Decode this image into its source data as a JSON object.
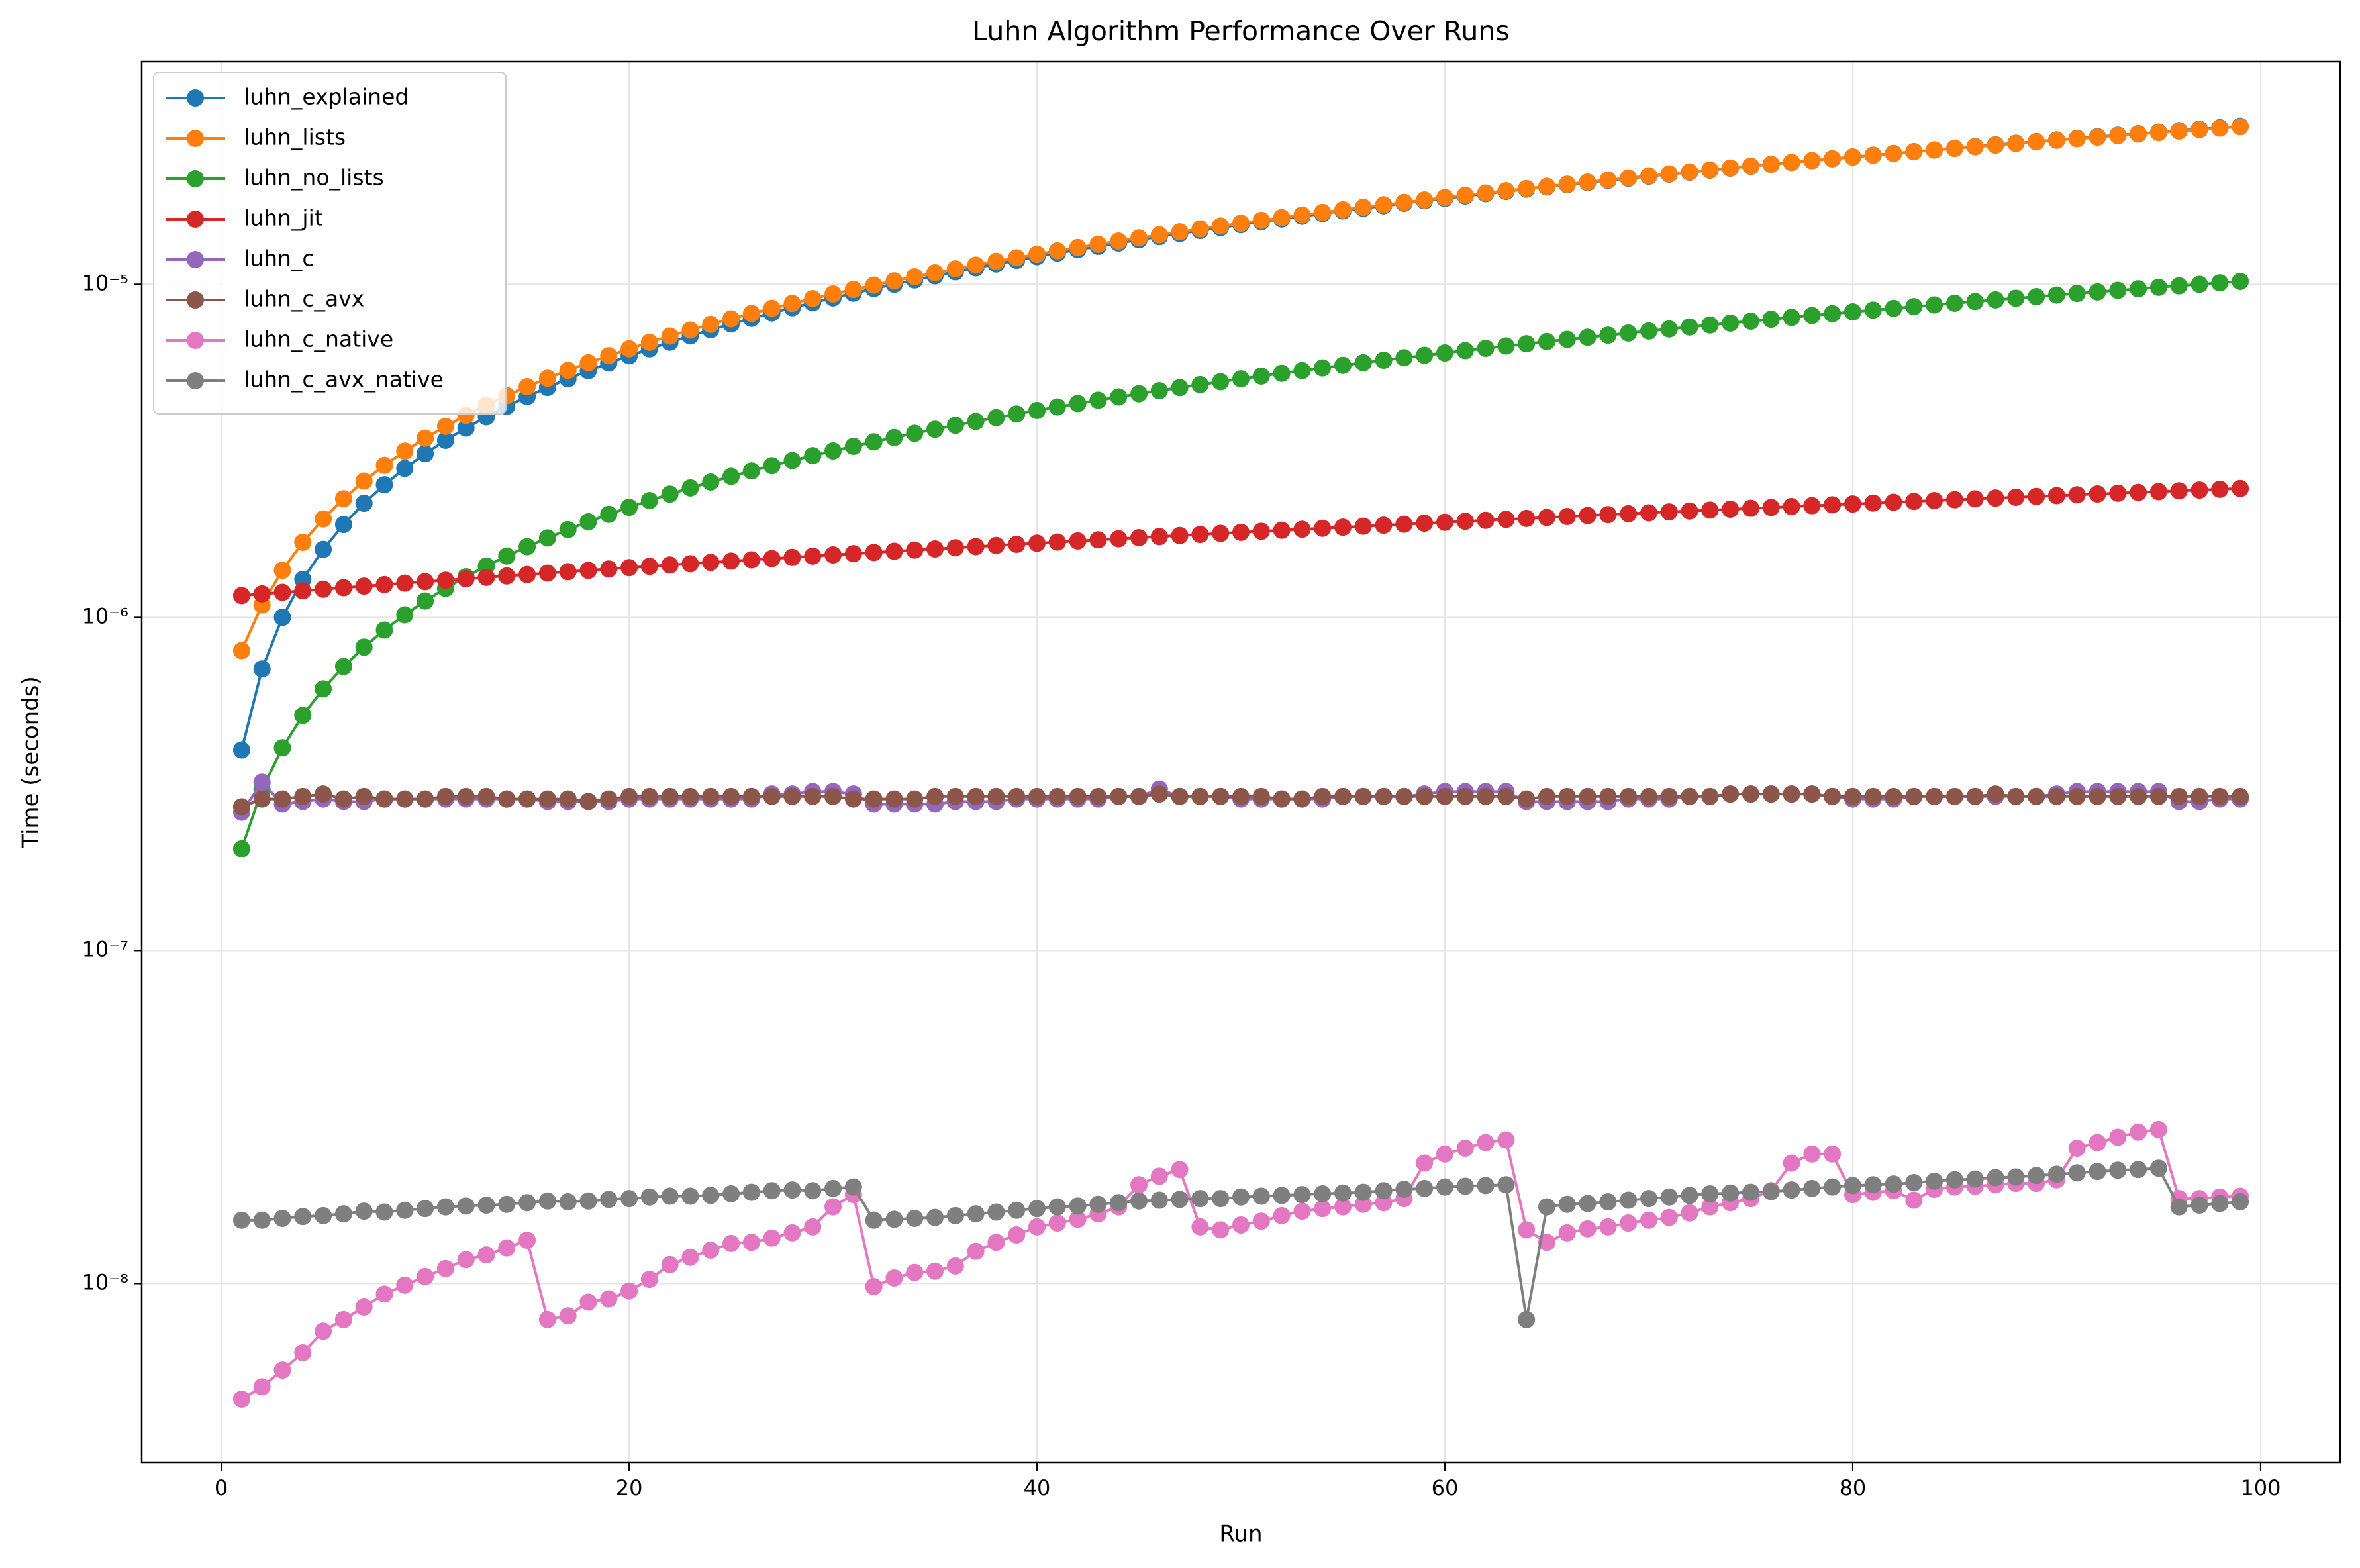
{
  "chart_data": {
    "type": "line",
    "title": "Luhn Algorithm Performance Over Runs",
    "x_label": "Run",
    "y_label": "Time (seconds)",
    "xlim": [
      -3.9,
      103.9
    ],
    "xticks": [
      0,
      20,
      40,
      60,
      80,
      100
    ],
    "ylim": [
      2.9e-09,
      4.66e-05
    ],
    "y_scale": "log",
    "yticks": [
      {
        "value": 1e-08,
        "label": "10⁻⁸"
      },
      {
        "value": 1e-07,
        "label": "10⁻⁷"
      },
      {
        "value": 1e-06,
        "label": "10⁻⁶"
      },
      {
        "value": 1e-05,
        "label": "10⁻⁵"
      }
    ],
    "grid": true,
    "legend": "upper left",
    "x": [
      1,
      2,
      3,
      4,
      5,
      6,
      7,
      8,
      9,
      10,
      11,
      12,
      13,
      14,
      15,
      16,
      17,
      18,
      19,
      20,
      21,
      22,
      23,
      24,
      25,
      26,
      27,
      28,
      29,
      30,
      31,
      32,
      33,
      34,
      35,
      36,
      37,
      38,
      39,
      40,
      41,
      42,
      43,
      44,
      45,
      46,
      47,
      48,
      49,
      50,
      51,
      52,
      53,
      54,
      55,
      56,
      57,
      58,
      59,
      60,
      61,
      62,
      63,
      64,
      65,
      66,
      67,
      68,
      69,
      70,
      71,
      72,
      73,
      74,
      75,
      76,
      77,
      78,
      79,
      80,
      81,
      82,
      83,
      84,
      85,
      86,
      87,
      88,
      89,
      90,
      91,
      92,
      93,
      94,
      95,
      96,
      97,
      98,
      99
    ],
    "series": [
      {
        "name": "luhn_explained",
        "color": "#1f77b4",
        "values": [
          4e-07,
          7e-07,
          1e-06,
          1.3e-06,
          1.6e-06,
          1.9e-06,
          2.2e-06,
          2.5e-06,
          2.8e-06,
          3.1e-06,
          3.4e-06,
          3.7e-06,
          4e-06,
          4.3e-06,
          4.6e-06,
          4.9e-06,
          5.2e-06,
          5.5e-06,
          5.8e-06,
          6.1e-06,
          6.4e-06,
          6.7e-06,
          7e-06,
          7.3e-06,
          7.6e-06,
          7.9e-06,
          8.2e-06,
          8.5e-06,
          8.8e-06,
          9.1e-06,
          9.4e-06,
          9.7e-06,
          1e-05,
          1.03e-05,
          1.06e-05,
          1.09e-05,
          1.12e-05,
          1.15e-05,
          1.18e-05,
          1.21e-05,
          1.24e-05,
          1.27e-05,
          1.3e-05,
          1.33e-05,
          1.36e-05,
          1.39e-05,
          1.42e-05,
          1.45e-05,
          1.48e-05,
          1.51e-05,
          1.54e-05,
          1.57e-05,
          1.6e-05,
          1.63e-05,
          1.66e-05,
          1.69e-05,
          1.72e-05,
          1.75e-05,
          1.78e-05,
          1.81e-05,
          1.84e-05,
          1.87e-05,
          1.9e-05,
          1.93e-05,
          1.96e-05,
          1.99e-05,
          2.02e-05,
          2.05e-05,
          2.08e-05,
          2.11e-05,
          2.14e-05,
          2.17e-05,
          2.2e-05,
          2.23e-05,
          2.26e-05,
          2.29e-05,
          2.32e-05,
          2.35e-05,
          2.38e-05,
          2.41e-05,
          2.44e-05,
          2.47e-05,
          2.5e-05,
          2.53e-05,
          2.56e-05,
          2.59e-05,
          2.62e-05,
          2.65e-05,
          2.68e-05,
          2.71e-05,
          2.74e-05,
          2.77e-05,
          2.8e-05,
          2.83e-05,
          2.86e-05,
          2.89e-05,
          2.92e-05,
          2.95e-05,
          2.98e-05
        ]
      },
      {
        "name": "luhn_lists",
        "color": "#ff7f0e",
        "values": [
          7.95e-07,
          1.09e-06,
          1.385e-06,
          1.68e-06,
          1.975e-06,
          2.27e-06,
          2.565e-06,
          2.86e-06,
          3.155e-06,
          3.45e-06,
          3.745e-06,
          4.04e-06,
          4.335e-06,
          4.63e-06,
          4.925e-06,
          5.22e-06,
          5.515e-06,
          5.81e-06,
          6.105e-06,
          6.4e-06,
          6.695e-06,
          6.99e-06,
          7.285e-06,
          7.58e-06,
          7.875e-06,
          8.17e-06,
          8.465e-06,
          8.76e-06,
          9.055e-06,
          9.35e-06,
          9.645e-06,
          9.94e-06,
          1.0235e-05,
          1.053e-05,
          1.0825e-05,
          1.112e-05,
          1.1415e-05,
          1.171e-05,
          1.2005e-05,
          1.23e-05,
          1.2595e-05,
          1.289e-05,
          1.3185e-05,
          1.348e-05,
          1.3775e-05,
          1.407e-05,
          1.4365e-05,
          1.466e-05,
          1.4955e-05,
          1.525e-05,
          1.5545e-05,
          1.584e-05,
          1.6135e-05,
          1.643e-05,
          1.6725e-05,
          1.702e-05,
          1.7315e-05,
          1.761e-05,
          1.7905e-05,
          1.82e-05,
          1.8495e-05,
          1.879e-05,
          1.9085e-05,
          1.938e-05,
          1.9675e-05,
          1.997e-05,
          2.0265e-05,
          2.056e-05,
          2.0855e-05,
          2.115e-05,
          2.1445e-05,
          2.174e-05,
          2.2035e-05,
          2.233e-05,
          2.2625e-05,
          2.292e-05,
          2.3215e-05,
          2.351e-05,
          2.3805e-05,
          2.41e-05,
          2.4395e-05,
          2.469e-05,
          2.4985e-05,
          2.528e-05,
          2.5575e-05,
          2.587e-05,
          2.6165e-05,
          2.646e-05,
          2.6755e-05,
          2.705e-05,
          2.7345e-05,
          2.764e-05,
          2.7935e-05,
          2.823e-05,
          2.8525e-05,
          2.882e-05,
          2.9115e-05,
          2.941e-05,
          2.9705e-05
        ]
      },
      {
        "name": "luhn_no_lists",
        "color": "#2ca02c",
        "values": [
          2.02e-07,
          3.04e-07,
          4.06e-07,
          5.08e-07,
          6.1e-07,
          7.12e-07,
          8.14e-07,
          9.16e-07,
          1.018e-06,
          1.12e-06,
          1.222e-06,
          1.324e-06,
          1.426e-06,
          1.528e-06,
          1.63e-06,
          1.732e-06,
          1.834e-06,
          1.936e-06,
          2.038e-06,
          2.14e-06,
          2.242e-06,
          2.344e-06,
          2.446e-06,
          2.548e-06,
          2.65e-06,
          2.752e-06,
          2.854e-06,
          2.956e-06,
          3.058e-06,
          3.16e-06,
          3.262e-06,
          3.364e-06,
          3.466e-06,
          3.568e-06,
          3.67e-06,
          3.772e-06,
          3.874e-06,
          3.976e-06,
          4.078e-06,
          4.18e-06,
          4.282e-06,
          4.384e-06,
          4.486e-06,
          4.588e-06,
          4.69e-06,
          4.792e-06,
          4.894e-06,
          4.996e-06,
          5.098e-06,
          5.2e-06,
          5.302e-06,
          5.404e-06,
          5.506e-06,
          5.608e-06,
          5.71e-06,
          5.812e-06,
          5.914e-06,
          6.016e-06,
          6.118e-06,
          6.22e-06,
          6.322e-06,
          6.424e-06,
          6.526e-06,
          6.628e-06,
          6.73e-06,
          6.832e-06,
          6.934e-06,
          7.036e-06,
          7.138e-06,
          7.24e-06,
          7.342e-06,
          7.444e-06,
          7.546e-06,
          7.648e-06,
          7.75e-06,
          7.852e-06,
          7.954e-06,
          8.056e-06,
          8.158e-06,
          8.26e-06,
          8.362e-06,
          8.464e-06,
          8.566e-06,
          8.668e-06,
          8.77e-06,
          8.872e-06,
          8.974e-06,
          9.076e-06,
          9.178e-06,
          9.28e-06,
          9.382e-06,
          9.484e-06,
          9.586e-06,
          9.688e-06,
          9.79e-06,
          9.892e-06,
          9.994e-06,
          1.0096e-05,
          1.0198e-05
        ]
      },
      {
        "name": "luhn_jit",
        "color": "#d62728",
        "values": [
          1.163e-06,
          1.176e-06,
          1.189e-06,
          1.202e-06,
          1.215e-06,
          1.228e-06,
          1.241e-06,
          1.254e-06,
          1.267e-06,
          1.28e-06,
          1.293e-06,
          1.306e-06,
          1.319e-06,
          1.332e-06,
          1.345e-06,
          1.358e-06,
          1.371e-06,
          1.384e-06,
          1.397e-06,
          1.41e-06,
          1.423e-06,
          1.436e-06,
          1.449e-06,
          1.462e-06,
          1.475e-06,
          1.488e-06,
          1.501e-06,
          1.514e-06,
          1.527e-06,
          1.54e-06,
          1.553e-06,
          1.566e-06,
          1.579e-06,
          1.592e-06,
          1.605e-06,
          1.618e-06,
          1.631e-06,
          1.644e-06,
          1.657e-06,
          1.67e-06,
          1.683e-06,
          1.696e-06,
          1.709e-06,
          1.722e-06,
          1.735e-06,
          1.748e-06,
          1.761e-06,
          1.774e-06,
          1.787e-06,
          1.8e-06,
          1.813e-06,
          1.826e-06,
          1.839e-06,
          1.852e-06,
          1.865e-06,
          1.878e-06,
          1.891e-06,
          1.904e-06,
          1.917e-06,
          1.93e-06,
          1.943e-06,
          1.956e-06,
          1.969e-06,
          1.982e-06,
          1.995e-06,
          2.008e-06,
          2.021e-06,
          2.034e-06,
          2.047e-06,
          2.06e-06,
          2.073e-06,
          2.086e-06,
          2.099e-06,
          2.112e-06,
          2.125e-06,
          2.138e-06,
          2.151e-06,
          2.164e-06,
          2.177e-06,
          2.19e-06,
          2.203e-06,
          2.216e-06,
          2.229e-06,
          2.242e-06,
          2.255e-06,
          2.268e-06,
          2.281e-06,
          2.294e-06,
          2.307e-06,
          2.32e-06,
          2.333e-06,
          2.346e-06,
          2.359e-06,
          2.372e-06,
          2.385e-06,
          2.398e-06,
          2.411e-06,
          2.424e-06,
          2.437e-06
        ]
      },
      {
        "name": "luhn_c",
        "color": "#9467bd",
        "values": [
          2.6e-07,
          3.2e-07,
          2.75e-07,
          2.8e-07,
          2.85e-07,
          2.8e-07,
          2.8e-07,
          2.85e-07,
          2.85e-07,
          2.85e-07,
          2.85e-07,
          2.85e-07,
          2.85e-07,
          2.85e-07,
          2.85e-07,
          2.8e-07,
          2.8e-07,
          2.8e-07,
          2.8e-07,
          2.85e-07,
          2.85e-07,
          2.85e-07,
          2.85e-07,
          2.85e-07,
          2.85e-07,
          2.85e-07,
          2.95e-07,
          2.95e-07,
          3e-07,
          3e-07,
          2.95e-07,
          2.75e-07,
          2.75e-07,
          2.75e-07,
          2.75e-07,
          2.8e-07,
          2.8e-07,
          2.8e-07,
          2.85e-07,
          2.85e-07,
          2.85e-07,
          2.85e-07,
          2.85e-07,
          2.9e-07,
          2.9e-07,
          3.05e-07,
          2.9e-07,
          2.9e-07,
          2.9e-07,
          2.85e-07,
          2.85e-07,
          2.85e-07,
          2.85e-07,
          2.85e-07,
          2.9e-07,
          2.9e-07,
          2.9e-07,
          2.9e-07,
          2.95e-07,
          3e-07,
          3e-07,
          3e-07,
          3e-07,
          2.8e-07,
          2.8e-07,
          2.8e-07,
          2.8e-07,
          2.8e-07,
          2.85e-07,
          2.85e-07,
          2.85e-07,
          2.9e-07,
          2.9e-07,
          2.95e-07,
          2.95e-07,
          2.95e-07,
          2.95e-07,
          2.95e-07,
          2.9e-07,
          2.85e-07,
          2.85e-07,
          2.85e-07,
          2.9e-07,
          2.9e-07,
          2.9e-07,
          2.9e-07,
          2.9e-07,
          2.9e-07,
          2.9e-07,
          2.95e-07,
          3e-07,
          3e-07,
          3e-07,
          3e-07,
          3e-07,
          2.8e-07,
          2.8e-07,
          2.85e-07,
          2.85e-07
        ]
      },
      {
        "name": "luhn_c_avx",
        "color": "#8c564b",
        "values": [
          2.7e-07,
          2.85e-07,
          2.85e-07,
          2.9e-07,
          2.95e-07,
          2.85e-07,
          2.9e-07,
          2.85e-07,
          2.85e-07,
          2.85e-07,
          2.9e-07,
          2.9e-07,
          2.9e-07,
          2.85e-07,
          2.85e-07,
          2.85e-07,
          2.85e-07,
          2.8e-07,
          2.85e-07,
          2.9e-07,
          2.9e-07,
          2.9e-07,
          2.9e-07,
          2.9e-07,
          2.9e-07,
          2.9e-07,
          2.9e-07,
          2.9e-07,
          2.9e-07,
          2.9e-07,
          2.85e-07,
          2.85e-07,
          2.85e-07,
          2.85e-07,
          2.9e-07,
          2.9e-07,
          2.9e-07,
          2.9e-07,
          2.9e-07,
          2.9e-07,
          2.9e-07,
          2.9e-07,
          2.9e-07,
          2.9e-07,
          2.9e-07,
          2.95e-07,
          2.9e-07,
          2.9e-07,
          2.9e-07,
          2.9e-07,
          2.9e-07,
          2.85e-07,
          2.85e-07,
          2.9e-07,
          2.9e-07,
          2.9e-07,
          2.9e-07,
          2.9e-07,
          2.9e-07,
          2.9e-07,
          2.9e-07,
          2.9e-07,
          2.9e-07,
          2.85e-07,
          2.9e-07,
          2.9e-07,
          2.9e-07,
          2.9e-07,
          2.9e-07,
          2.9e-07,
          2.9e-07,
          2.9e-07,
          2.9e-07,
          2.95e-07,
          2.95e-07,
          2.95e-07,
          2.95e-07,
          2.95e-07,
          2.9e-07,
          2.9e-07,
          2.9e-07,
          2.9e-07,
          2.9e-07,
          2.9e-07,
          2.9e-07,
          2.9e-07,
          2.95e-07,
          2.9e-07,
          2.9e-07,
          2.9e-07,
          2.9e-07,
          2.9e-07,
          2.9e-07,
          2.9e-07,
          2.9e-07,
          2.9e-07,
          2.9e-07,
          2.9e-07,
          2.9e-07
        ]
      },
      {
        "name": "luhn_c_native",
        "color": "#e377c2",
        "values": [
          4.5e-09,
          4.9e-09,
          5.5e-09,
          6.2e-09,
          7.2e-09,
          7.8e-09,
          8.5e-09,
          9.3e-09,
          9.9e-09,
          1.05e-08,
          1.11e-08,
          1.18e-08,
          1.22e-08,
          1.28e-08,
          1.35e-08,
          7.8e-09,
          8e-09,
          8.8e-09,
          9e-09,
          9.5e-09,
          1.03e-08,
          1.14e-08,
          1.2e-08,
          1.26e-08,
          1.32e-08,
          1.33e-08,
          1.37e-08,
          1.42e-08,
          1.48e-08,
          1.7e-08,
          1.85e-08,
          9.8e-09,
          1.04e-08,
          1.08e-08,
          1.09e-08,
          1.13e-08,
          1.25e-08,
          1.33e-08,
          1.4e-08,
          1.48e-08,
          1.52e-08,
          1.56e-08,
          1.62e-08,
          1.7e-08,
          1.98e-08,
          2.1e-08,
          2.2e-08,
          1.48e-08,
          1.45e-08,
          1.5e-08,
          1.54e-08,
          1.6e-08,
          1.65e-08,
          1.68e-08,
          1.7e-08,
          1.73e-08,
          1.75e-08,
          1.8e-08,
          2.3e-08,
          2.45e-08,
          2.55e-08,
          2.65e-08,
          2.7e-08,
          1.45e-08,
          1.33e-08,
          1.42e-08,
          1.46e-08,
          1.48e-08,
          1.52e-08,
          1.55e-08,
          1.58e-08,
          1.63e-08,
          1.7e-08,
          1.75e-08,
          1.8e-08,
          1.9e-08,
          2.3e-08,
          2.45e-08,
          2.45e-08,
          1.85e-08,
          1.88e-08,
          1.9e-08,
          1.78e-08,
          1.92e-08,
          1.95e-08,
          1.96e-08,
          1.98e-08,
          2e-08,
          2e-08,
          2.05e-08,
          2.55e-08,
          2.65e-08,
          2.75e-08,
          2.85e-08,
          2.9e-08,
          1.8e-08,
          1.8e-08,
          1.82e-08,
          1.83e-08
        ]
      },
      {
        "name": "luhn_c_avx_native",
        "color": "#7f7f7f",
        "values": [
          1.55e-08,
          1.55e-08,
          1.57e-08,
          1.59e-08,
          1.6e-08,
          1.62e-08,
          1.65e-08,
          1.64e-08,
          1.66e-08,
          1.68e-08,
          1.7e-08,
          1.71e-08,
          1.72e-08,
          1.73e-08,
          1.75e-08,
          1.77e-08,
          1.76e-08,
          1.77e-08,
          1.79e-08,
          1.8e-08,
          1.82e-08,
          1.83e-08,
          1.83e-08,
          1.84e-08,
          1.86e-08,
          1.88e-08,
          1.9e-08,
          1.91e-08,
          1.9e-08,
          1.93e-08,
          1.95e-08,
          1.55e-08,
          1.56e-08,
          1.57e-08,
          1.58e-08,
          1.6e-08,
          1.62e-08,
          1.64e-08,
          1.66e-08,
          1.68e-08,
          1.7e-08,
          1.71e-08,
          1.73e-08,
          1.75e-08,
          1.77e-08,
          1.78e-08,
          1.79e-08,
          1.8e-08,
          1.8e-08,
          1.82e-08,
          1.83e-08,
          1.84e-08,
          1.85e-08,
          1.86e-08,
          1.87e-08,
          1.88e-08,
          1.9e-08,
          1.92e-08,
          1.93e-08,
          1.95e-08,
          1.96e-08,
          1.97e-08,
          1.98e-08,
          7.8e-09,
          1.7e-08,
          1.73e-08,
          1.74e-08,
          1.76e-08,
          1.78e-08,
          1.8e-08,
          1.82e-08,
          1.84e-08,
          1.86e-08,
          1.87e-08,
          1.88e-08,
          1.89e-08,
          1.91e-08,
          1.93e-08,
          1.95e-08,
          1.97e-08,
          1.98e-08,
          1.99e-08,
          2.01e-08,
          2.03e-08,
          2.05e-08,
          2.06e-08,
          2.08e-08,
          2.09e-08,
          2.11e-08,
          2.13e-08,
          2.15e-08,
          2.17e-08,
          2.19e-08,
          2.2e-08,
          2.22e-08,
          1.7e-08,
          1.72e-08,
          1.74e-08,
          1.76e-08
        ]
      }
    ]
  }
}
